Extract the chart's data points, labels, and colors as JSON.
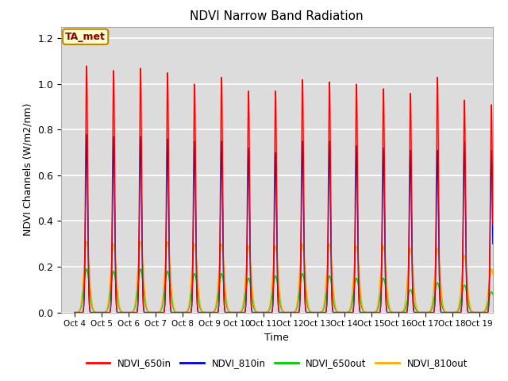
{
  "title": "NDVI Narrow Band Radiation",
  "xlabel": "Time",
  "ylabel": "NDVI Channels (W/m2/nm)",
  "ylim": [
    0,
    1.25
  ],
  "annotation": "TA_met",
  "colors": {
    "NDVI_650in": "#ff0000",
    "NDVI_810in": "#0000cc",
    "NDVI_650out": "#00cc00",
    "NDVI_810out": "#ffaa00"
  },
  "x_tick_labels": [
    "Oct 4",
    "Oct 5",
    "Oct 6",
    "Oct 7",
    "Oct 8",
    "Oct 9",
    "Oct 10",
    "Oct 11",
    "Oct 12",
    "Oct 13",
    "Oct 14",
    "Oct 15",
    "Oct 16",
    "Oct 17",
    "Oct 18",
    "Oct 19"
  ],
  "background_color": "#dcdcdc",
  "peak_650in": [
    1.08,
    1.06,
    1.07,
    1.05,
    1.0,
    1.03,
    0.97,
    0.97,
    1.02,
    1.01,
    1.0,
    0.98,
    0.96,
    1.03,
    0.93,
    0.91
  ],
  "peak_810in": [
    0.78,
    0.77,
    0.77,
    0.76,
    0.75,
    0.75,
    0.72,
    0.7,
    0.75,
    0.75,
    0.73,
    0.72,
    0.71,
    0.71,
    0.75,
    0.71
  ],
  "peak_650out": [
    0.19,
    0.18,
    0.19,
    0.18,
    0.17,
    0.17,
    0.15,
    0.16,
    0.17,
    0.16,
    0.15,
    0.15,
    0.1,
    0.13,
    0.12,
    0.09
  ],
  "peak_810out": [
    0.31,
    0.3,
    0.31,
    0.31,
    0.3,
    0.3,
    0.29,
    0.29,
    0.3,
    0.3,
    0.29,
    0.29,
    0.28,
    0.28,
    0.25,
    0.19
  ]
}
